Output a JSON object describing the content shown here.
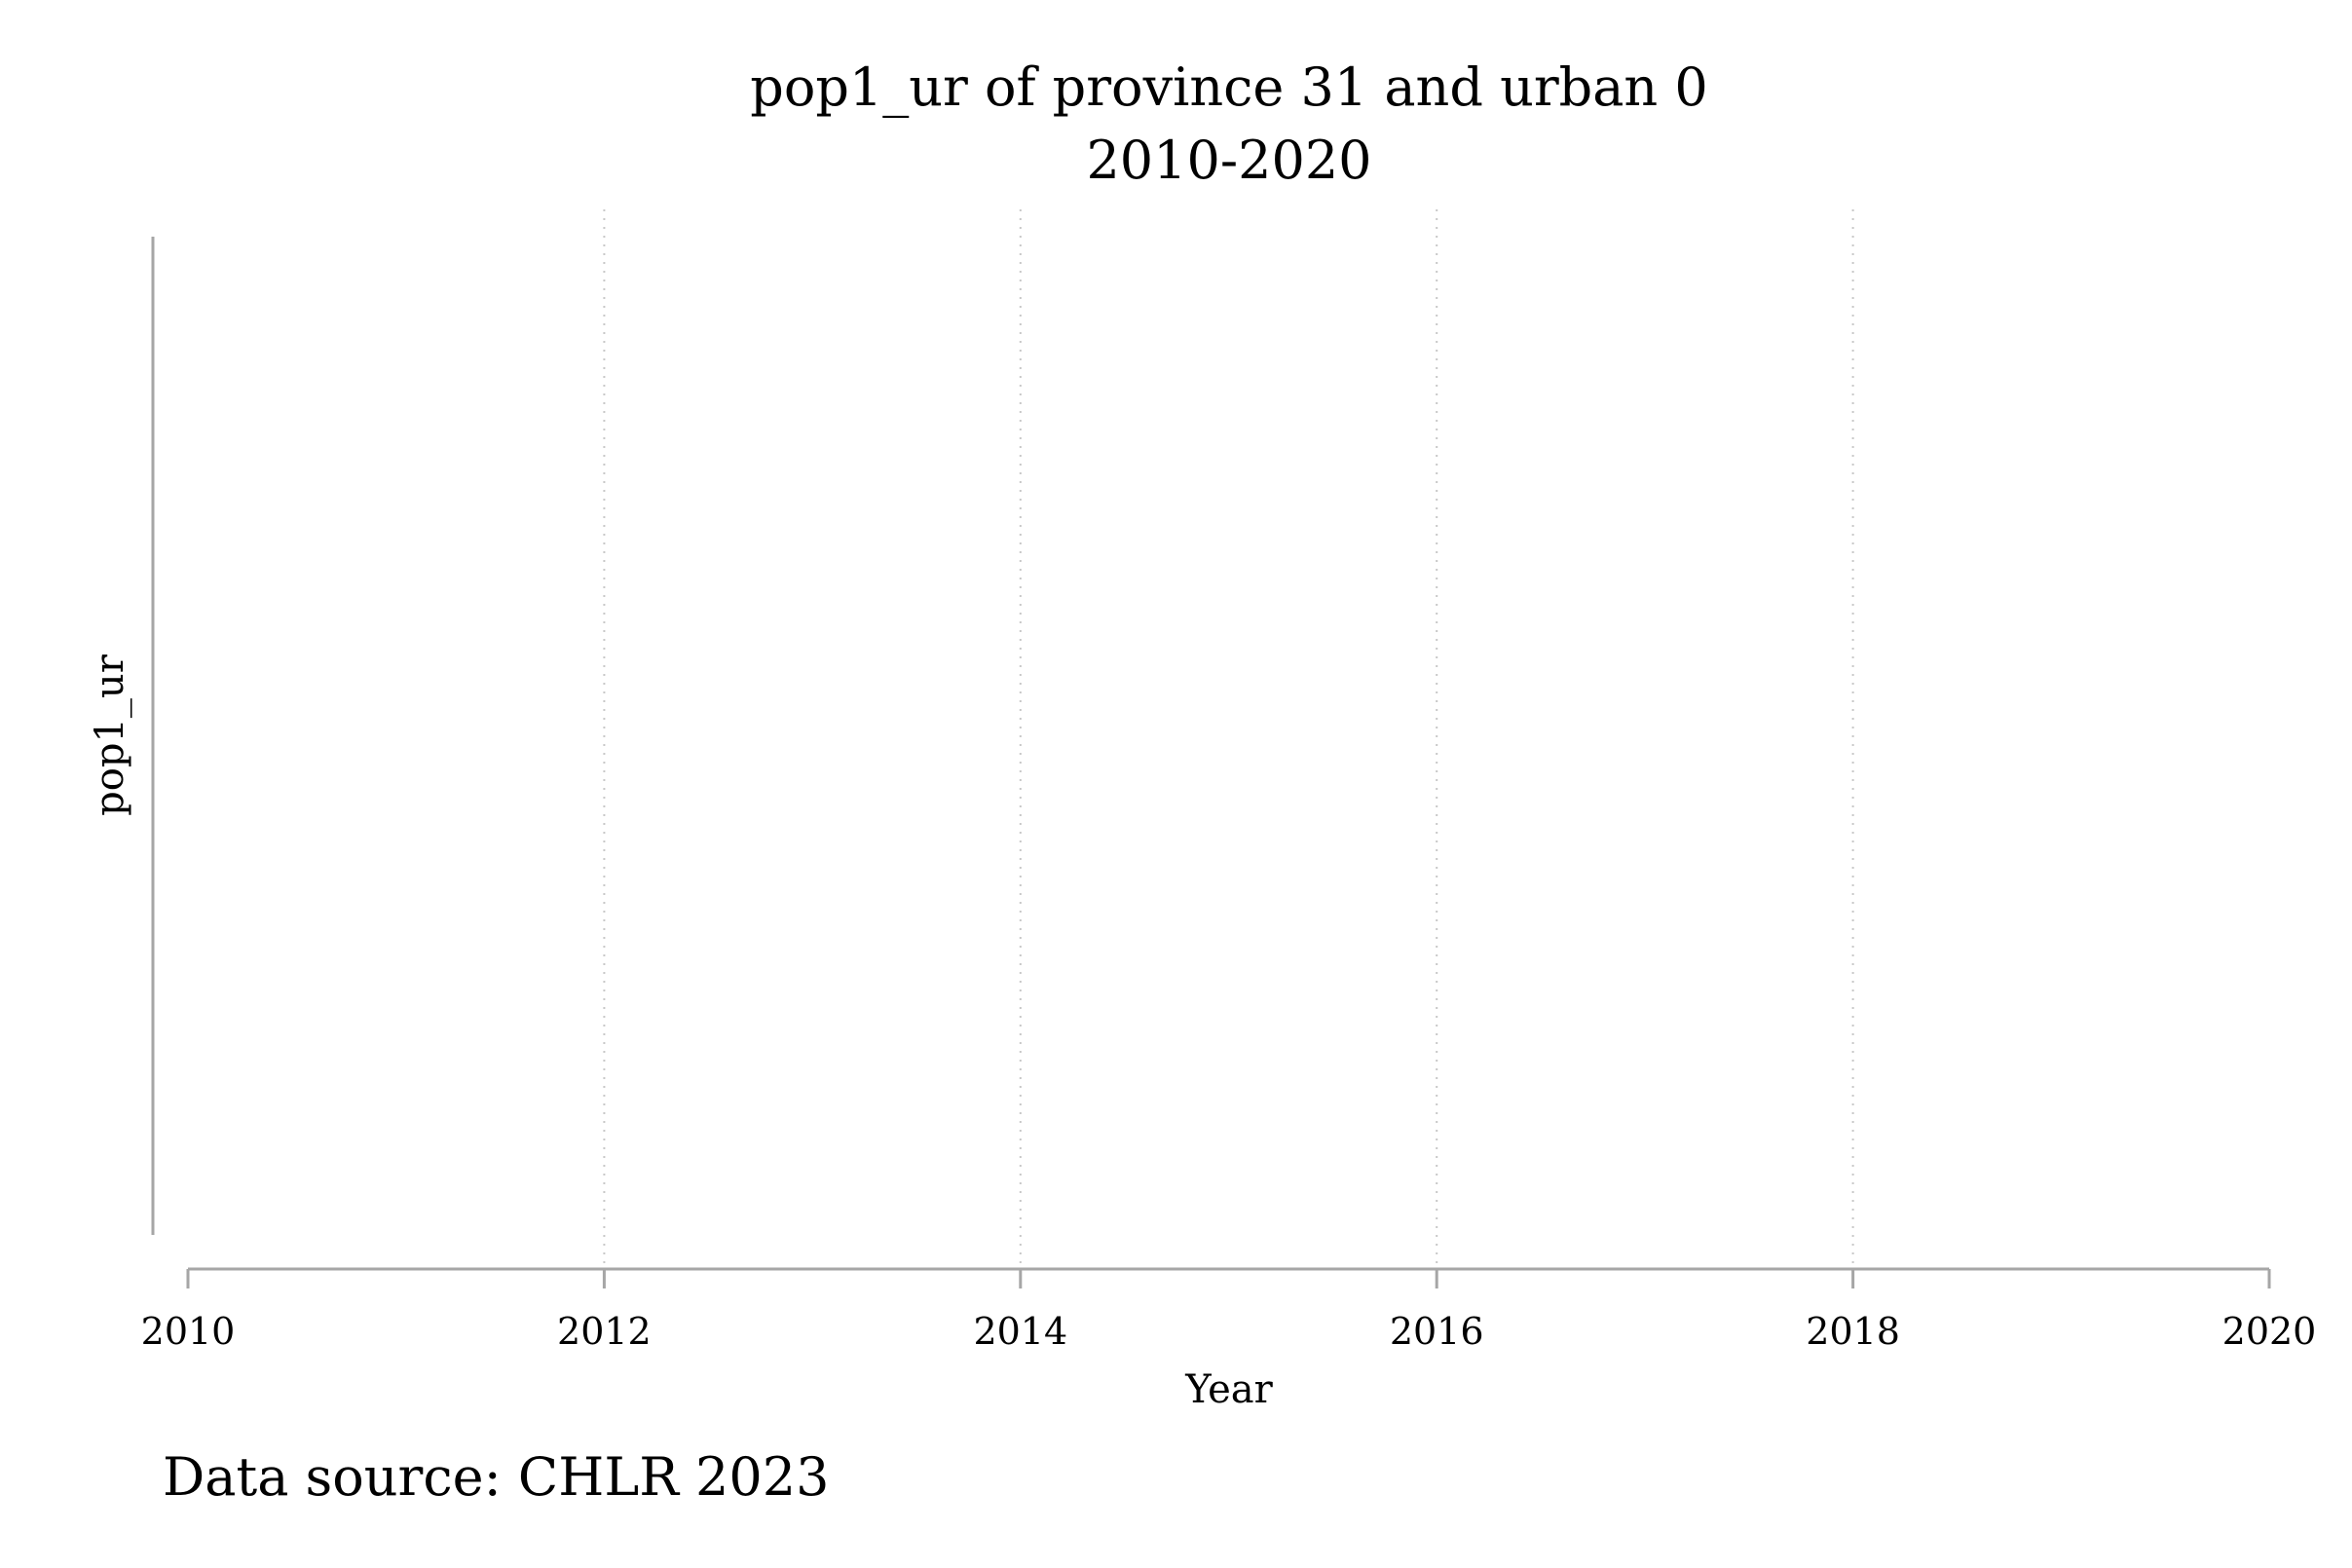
{
  "chart_data": {
    "type": "line",
    "title": "pop1_ur of province 31 and urban 0",
    "subtitle": "2010-2020",
    "xlabel": "Year",
    "ylabel": "pop1_ur",
    "x_ticks": [
      2010,
      2012,
      2014,
      2016,
      2018,
      2020
    ],
    "xlim": [
      2010,
      2020
    ],
    "series": [],
    "grid": {
      "vertical": true,
      "horizontal": false,
      "style": "dotted"
    },
    "legend": "none"
  },
  "caption": "Data source: CHLR 2023",
  "colors": {
    "axis": "#a6a6a6",
    "grid": "#c8c8c8",
    "text": "#000000",
    "background": "#ffffff"
  }
}
